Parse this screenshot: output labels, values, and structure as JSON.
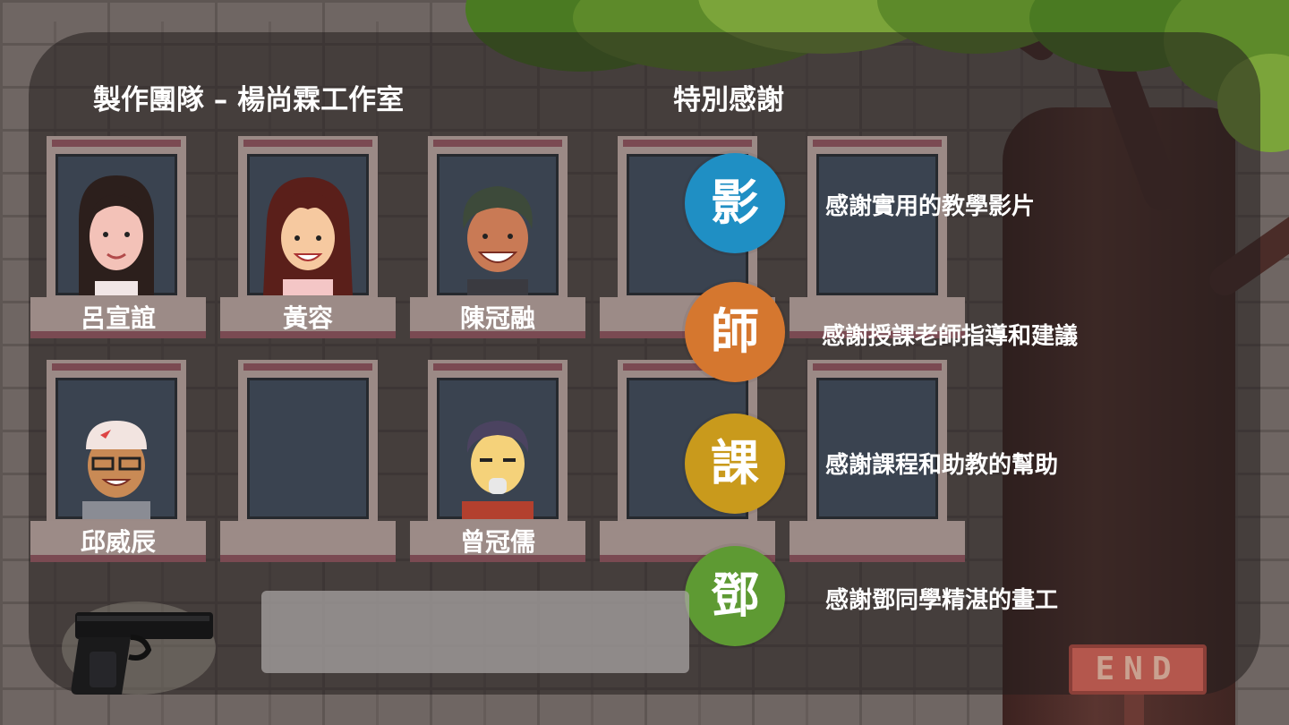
{
  "team": {
    "heading": "製作團隊 – 楊尚霖工作室",
    "members": [
      "呂宣誼",
      "黃容",
      "陳冠融",
      "邱威辰",
      "曾冠儒"
    ]
  },
  "thanks": {
    "heading": "特別感謝",
    "items": [
      {
        "glyph": "影",
        "text": "感謝實用的教學影片",
        "color": "#1f8fc4"
      },
      {
        "glyph": "師",
        "text": "感謝授課老師指導和建議",
        "color": "#d5772f"
      },
      {
        "glyph": "課",
        "text": "感謝課程和助教的幫助",
        "color": "#c99a1c"
      },
      {
        "glyph": "鄧",
        "text": "感謝鄧同學精湛的畫工",
        "color": "#5e9a33"
      }
    ]
  },
  "end_sign": "END",
  "icons": {
    "weapon": "pistol-icon"
  }
}
